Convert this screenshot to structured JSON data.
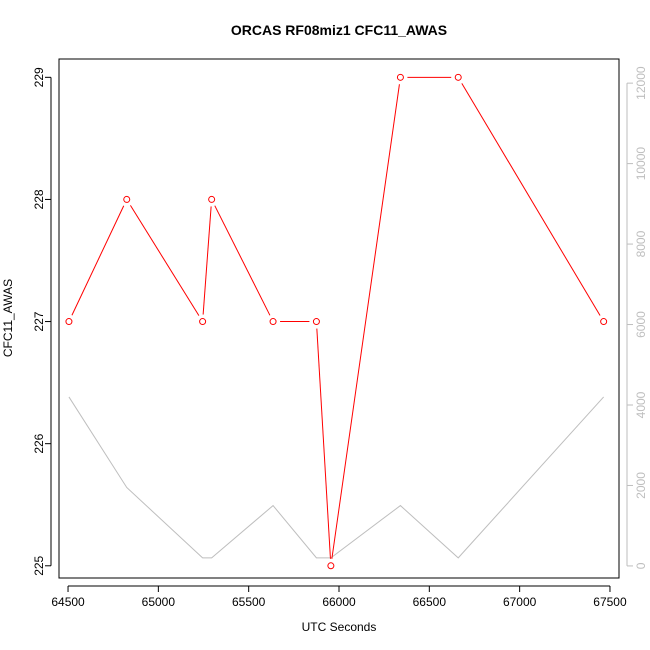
{
  "chart_data": {
    "type": "line",
    "title": "ORCAS RF08miz1 CFC11_AWAS",
    "xlabel": "UTC Seconds",
    "ylabel": "CFC11_AWAS",
    "xlim": [
      64450,
      67550
    ],
    "ylim": [
      224.9,
      229.15
    ],
    "y2lim": [
      -300,
      12600
    ],
    "x_ticks": [
      "64500",
      "65000",
      "65500",
      "66000",
      "66500",
      "67000",
      "67500"
    ],
    "y_ticks": [
      "225",
      "226",
      "227",
      "228",
      "229"
    ],
    "y2_ticks": [
      "0",
      "2000",
      "4000",
      "6000",
      "8000",
      "10000",
      "12000"
    ],
    "series": [
      {
        "axis": "left",
        "color": "#ff0000",
        "markers": true,
        "x": [
          64505,
          64825,
          65245,
          65295,
          65635,
          65875,
          65955,
          66340,
          66660,
          67465
        ],
        "y": [
          227,
          228,
          227,
          228,
          227,
          227,
          225,
          229,
          229,
          227
        ]
      },
      {
        "axis": "right",
        "color": "#bebebe",
        "markers": false,
        "x": [
          64505,
          64825,
          65245,
          65295,
          65635,
          65875,
          65955,
          66340,
          66660,
          67465
        ],
        "y": [
          4200,
          1950,
          200,
          200,
          1500,
          200,
          200,
          1500,
          200,
          4200
        ]
      }
    ]
  }
}
